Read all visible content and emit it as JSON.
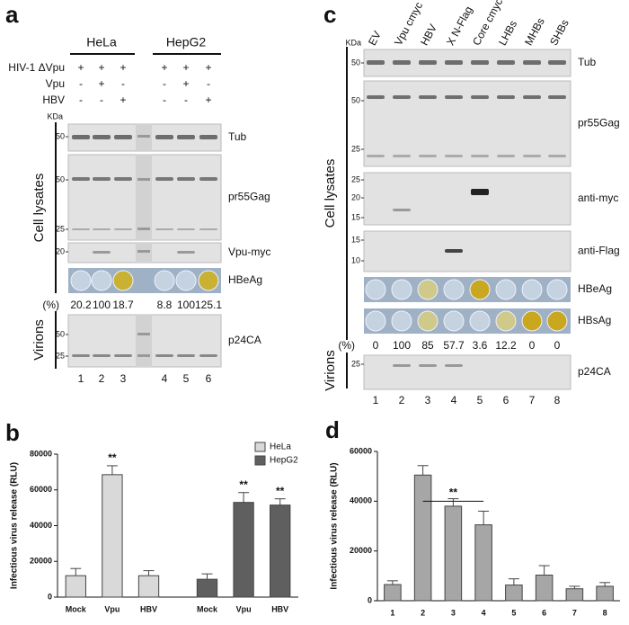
{
  "panel_a": {
    "letter": "a",
    "cell_lines": [
      "HeLa",
      "HepG2"
    ],
    "conditions": [
      {
        "name": "HIV-1 ΔVpu",
        "signs": [
          "+",
          "+",
          "+",
          "+",
          "+",
          "+"
        ]
      },
      {
        "name": "Vpu",
        "signs": [
          "-",
          "+",
          "-",
          "-",
          "+",
          "-"
        ]
      },
      {
        "name": "HBV",
        "signs": [
          "-",
          "-",
          "+",
          "-",
          "-",
          "+"
        ]
      }
    ],
    "kda": "KDa",
    "blots": [
      {
        "label": "Tub",
        "markers": [
          50
        ]
      },
      {
        "label": "pr55Gag",
        "markers": [
          50,
          25
        ]
      },
      {
        "label": "Vpu-myc",
        "markers": [
          20
        ]
      }
    ],
    "well_label": "HBeAg",
    "well_colors": [
      "#c5d3e0",
      "#c5d3e0",
      "#c9b233",
      "#c5d3e0",
      "#c5d3e0",
      "#c9b233"
    ],
    "percent_label": "(%)",
    "percents": [
      20.2,
      100,
      18.7,
      8.8,
      100,
      125.1
    ],
    "virion_blot": {
      "label": "p24CA",
      "markers": [
        50,
        25
      ]
    },
    "lanes": [
      1,
      2,
      3,
      4,
      5,
      6
    ],
    "section_labels": [
      "Cell lysates",
      "Virions"
    ]
  },
  "panel_c": {
    "letter": "c",
    "lane_headers": [
      "EV",
      "Vpu cmyc",
      "HBV",
      "X N-Flag",
      "Core cmyc",
      "LHBs",
      "MHBs",
      "SHBs"
    ],
    "kda": "KDa",
    "blots": [
      {
        "label": "Tub",
        "markers": [
          50
        ]
      },
      {
        "label": "pr55Gag",
        "markers": [
          50,
          25
        ]
      },
      {
        "label": "anti-myc",
        "markers": [
          25,
          20,
          15
        ]
      },
      {
        "label": "anti-Flag",
        "markers": [
          15,
          10
        ]
      }
    ],
    "well_rows": [
      {
        "label": "HBeAg",
        "colors": [
          "#c5d3e0",
          "#c5d3e0",
          "#cfc98a",
          "#c5d3e0",
          "#c9a820",
          "#c5d3e0",
          "#c5d3e0",
          "#c5d3e0"
        ]
      },
      {
        "label": "HBsAg",
        "colors": [
          "#c5d3e0",
          "#c5d3e0",
          "#cfc98a",
          "#c5d3e0",
          "#c5d3e0",
          "#cfc98a",
          "#c9a820",
          "#c9a820"
        ]
      }
    ],
    "percent_label": "(%)",
    "percents": [
      0,
      100,
      85,
      57.7,
      3.6,
      12.2,
      0,
      0
    ],
    "virion_blot": {
      "label": "p24CA",
      "markers": [
        25
      ]
    },
    "lanes": [
      1,
      2,
      3,
      4,
      5,
      6,
      7,
      8
    ],
    "section_labels": [
      "Cell lysates",
      "Virions"
    ]
  },
  "chart_data": [
    {
      "type": "bar",
      "letter": "b",
      "y_label": "Infectious virus release (RLU)",
      "categories": [
        "Mock",
        "Vpu",
        "HBV",
        "Mock",
        "Vpu",
        "HBV"
      ],
      "series": [
        {
          "name": "HeLa",
          "color": "#d9d9d9",
          "values": [
            12000,
            68500,
            12000,
            null,
            null,
            null
          ],
          "errors": [
            4000,
            5000,
            2800,
            null,
            null,
            null
          ],
          "significance": [
            null,
            "**",
            null,
            null,
            null,
            null
          ]
        },
        {
          "name": "HepG2",
          "color": "#5f5f5f",
          "values": [
            null,
            null,
            null,
            10000,
            53000,
            51500
          ],
          "errors": [
            null,
            null,
            null,
            3000,
            5500,
            3500
          ],
          "significance": [
            null,
            null,
            null,
            null,
            "**",
            "**"
          ]
        }
      ],
      "ylim": [
        0,
        80000
      ],
      "yticks": [
        0,
        20000,
        40000,
        60000,
        80000
      ],
      "legend": "upper right"
    },
    {
      "type": "bar",
      "letter": "d",
      "y_label": "Infectious virus release (RLU)",
      "categories": [
        "1",
        "2",
        "3",
        "4",
        "5",
        "6",
        "7",
        "8"
      ],
      "series": [
        {
          "color": "#a6a6a6",
          "values": [
            6500,
            50500,
            38000,
            30500,
            6300,
            10300,
            4800,
            5800
          ],
          "errors": [
            1500,
            3800,
            3000,
            5500,
            2500,
            3800,
            1000,
            1500
          ]
        }
      ],
      "annotation": "**",
      "ylim": [
        0,
        60000
      ],
      "yticks": [
        0,
        20000,
        40000,
        60000
      ]
    }
  ]
}
